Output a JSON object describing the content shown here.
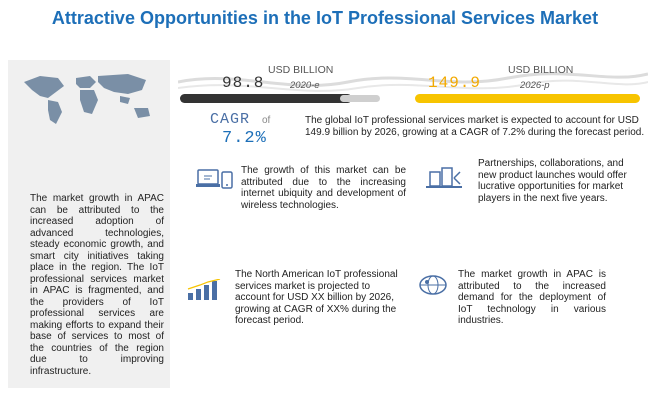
{
  "title": "Attractive Opportunities in the IoT Professional Services Market",
  "left_panel": {
    "map_icon": "world-map",
    "text": "The market growth in APAC can be attributed to the increased adoption of advanced technologies, steady economic growth, and smart city initiatives taking place in the region. The IoT professional services market in APAC is fragmented, and the providers of IoT professional services are making efforts to expand their base of services to most of the countries of the region due to improving infrastructure."
  },
  "stats": {
    "left": {
      "unit": "USD BILLION",
      "value": "98.8",
      "year": "2020-e",
      "bar_color": "#333333"
    },
    "right": {
      "unit": "USD BILLION",
      "value": "149.9",
      "year": "2026-p",
      "bar_color": "#f7c400"
    }
  },
  "cagr": {
    "label": "CAGR",
    "of": "of",
    "value": "7.2%"
  },
  "summary": "The global IoT professional services market is expected to account for USD 149.9 billion by 2026, growing at a CAGR of 7.2% during the forecast period.",
  "blocks": [
    {
      "icon": "devices-icon",
      "text": "The growth of this market can be attributed due to the increasing internet ubiquity and development of wireless technologies."
    },
    {
      "icon": "partnership-icon",
      "text": "Partnerships, collaborations, and new product launches would offer lucrative opportunities for market players in the next five years."
    },
    {
      "icon": "bar-growth-icon",
      "text": "The North American IoT professional services market is projected to account for USD XX billion by 2026, growing at CAGR of XX% during the forecast period."
    },
    {
      "icon": "globe-icon",
      "text": "The market growth in APAC is attributed to the increased demand for the deployment of IoT technology in various industries."
    }
  ],
  "colors": {
    "title": "#1d6fb8",
    "accent_yellow": "#f7c400",
    "dark_bar": "#333333"
  }
}
